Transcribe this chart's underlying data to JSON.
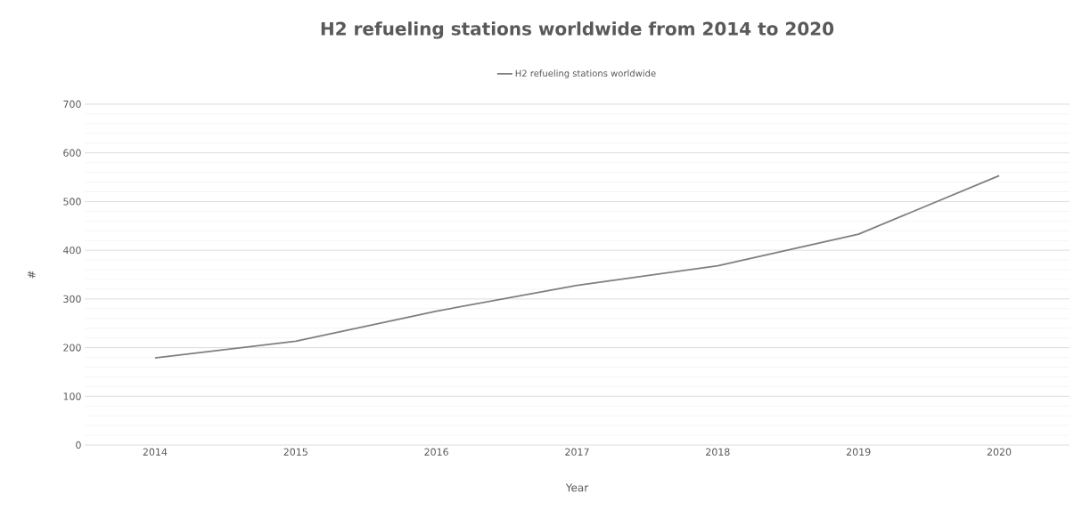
{
  "chart_data": {
    "type": "line",
    "title": "H2 refueling stations worldwide from 2014 to 2020",
    "xlabel": "Year",
    "ylabel": "#",
    "categories": [
      "2014",
      "2015",
      "2016",
      "2017",
      "2018",
      "2019",
      "2020"
    ],
    "series": [
      {
        "name": "H2 refueling stations worldwide",
        "color": "#7f7f7f",
        "values": [
          179,
          213,
          275,
          328,
          368,
          433,
          553
        ]
      }
    ],
    "ylim": [
      0,
      700
    ],
    "yticks": [
      0,
      100,
      200,
      300,
      400,
      500,
      600,
      700
    ],
    "grid": "y",
    "legend": "top",
    "marker": "none",
    "line_style": "solid"
  }
}
